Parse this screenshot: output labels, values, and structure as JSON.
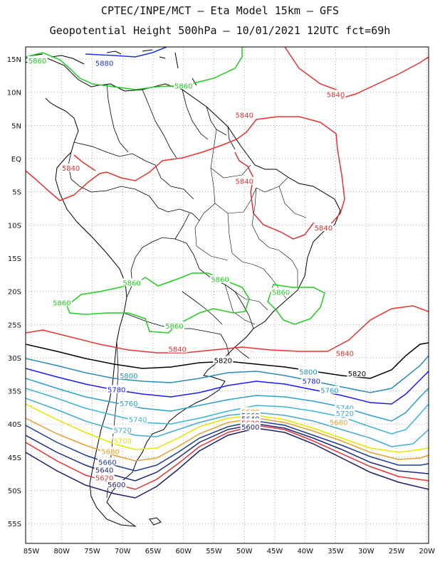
{
  "title_line1": "CPTEC/INPE/MCT – Eta Model 15km – GFS",
  "title_line2": "Geopotential Height 500hPa – 10/01/2021 12UTC fct=69h",
  "lon_ticks": [
    "85W",
    "80W",
    "75W",
    "70W",
    "65W",
    "60W",
    "55W",
    "50W",
    "45W",
    "40W",
    "35W",
    "30W",
    "25W",
    "20W"
  ],
  "lat_ticks": [
    "15N",
    "10N",
    "5N",
    "EQ",
    "5S",
    "10S",
    "15S",
    "20S",
    "25S",
    "30S",
    "35S",
    "40S",
    "45S",
    "50S",
    "55S"
  ],
  "colors": {
    "c5880": "#1a33e6",
    "c5860": "#22cc22",
    "c5840": "#e63232",
    "c5820": "#000000",
    "c5800": "#2a8cb4",
    "c5780": "#1a1aff",
    "c5760": "#2aa0c8",
    "c5740": "#3cb4d2",
    "c5720": "#46aacd",
    "c5700": "#e6e600",
    "c5680": "#e6a032",
    "c5660": "#1f3e8c",
    "c5640": "#1e2a78",
    "c5620": "#e63232",
    "c5600": "#1e1e64"
  },
  "contour_labels": [
    {
      "text": "5880",
      "color": "c5880",
      "lon": -73,
      "lat": 14.3
    },
    {
      "text": "5860",
      "color": "c5860",
      "lon": -84,
      "lat": 14.7
    },
    {
      "text": "5860",
      "color": "c5860",
      "lon": -60,
      "lat": 10.9
    },
    {
      "text": "5840",
      "color": "c5840",
      "lon": -35,
      "lat": 9.6
    },
    {
      "text": "5840",
      "color": "c5840",
      "lon": -50,
      "lat": 6.5
    },
    {
      "text": "5840",
      "color": "c5840",
      "lon": -78.5,
      "lat": -1.5
    },
    {
      "text": "5840",
      "color": "c5840",
      "lon": -50,
      "lat": -3.5
    },
    {
      "text": "5840",
      "color": "c5840",
      "lon": -37,
      "lat": -10.5
    },
    {
      "text": "5860",
      "color": "c5860",
      "lon": -68.5,
      "lat": -18.8
    },
    {
      "text": "5860",
      "color": "c5860",
      "lon": -54,
      "lat": -18.3
    },
    {
      "text": "5860",
      "color": "c5860",
      "lon": -80,
      "lat": -21.8
    },
    {
      "text": "5860",
      "color": "c5860",
      "lon": -44,
      "lat": -20.2
    },
    {
      "text": "5860",
      "color": "c5860",
      "lon": -61.5,
      "lat": -25.3
    },
    {
      "text": "5840",
      "color": "c5840",
      "lon": -61,
      "lat": -28.8
    },
    {
      "text": "5840",
      "color": "c5840",
      "lon": -33.5,
      "lat": -29.4
    },
    {
      "text": "5820",
      "color": "c5820",
      "lon": -53.5,
      "lat": -30.5
    },
    {
      "text": "5820",
      "color": "c5820",
      "lon": -31.5,
      "lat": -32.5
    },
    {
      "text": "5800",
      "color": "c5800",
      "lon": -69,
      "lat": -32.8
    },
    {
      "text": "5800",
      "color": "c5800",
      "lon": -39.5,
      "lat": -32.2
    },
    {
      "text": "5780",
      "color": "c5780",
      "lon": -71,
      "lat": -34.9
    },
    {
      "text": "5780",
      "color": "c5780",
      "lon": -39,
      "lat": -33.6
    },
    {
      "text": "5760",
      "color": "c5760",
      "lon": -69,
      "lat": -37.0
    },
    {
      "text": "5760",
      "color": "c5760",
      "lon": -36,
      "lat": -35.0
    },
    {
      "text": "5740",
      "color": "c5740",
      "lon": -67.5,
      "lat": -39.4
    },
    {
      "text": "5740",
      "color": "c5740",
      "lon": -33.5,
      "lat": -37.6
    },
    {
      "text": "5720",
      "color": "c5720",
      "lon": -70,
      "lat": -41.0
    },
    {
      "text": "5720",
      "color": "c5720",
      "lon": -33.5,
      "lat": -38.5
    },
    {
      "text": "5700",
      "color": "c5700",
      "lon": -70,
      "lat": -42.6
    },
    {
      "text": "5680",
      "color": "c5680",
      "lon": -49,
      "lat": -38.2
    },
    {
      "text": "5680",
      "color": "c5680",
      "lon": -72,
      "lat": -44.2
    },
    {
      "text": "5680",
      "color": "c5680",
      "lon": -34.5,
      "lat": -39.8
    },
    {
      "text": "5660",
      "color": "c5660",
      "lon": -49,
      "lat": -38.8
    },
    {
      "text": "5660",
      "color": "c5660",
      "lon": -72.5,
      "lat": -45.8
    },
    {
      "text": "5640",
      "color": "c5640",
      "lon": -49,
      "lat": -39.3
    },
    {
      "text": "5640",
      "color": "c5640",
      "lon": -73,
      "lat": -47.0
    },
    {
      "text": "5620",
      "color": "c5620",
      "lon": -49,
      "lat": -39.9
    },
    {
      "text": "5620",
      "color": "c5620",
      "lon": -73,
      "lat": -48.2
    },
    {
      "text": "5600",
      "color": "c5600",
      "lon": -49,
      "lat": -40.5
    },
    {
      "text": "5600",
      "color": "c5600",
      "lon": -71,
      "lat": -49.2
    }
  ]
}
